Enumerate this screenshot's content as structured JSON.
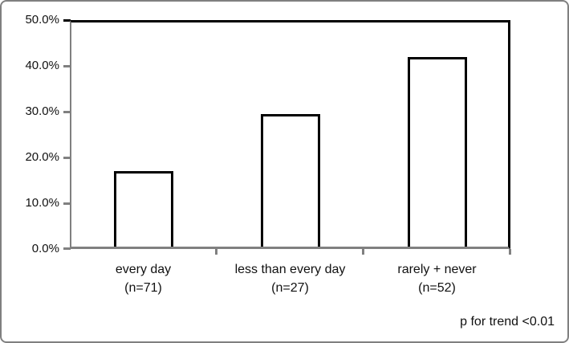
{
  "chart_data": {
    "type": "bar",
    "title": "",
    "xlabel": "",
    "ylabel": "",
    "categories": [
      {
        "label": "every day",
        "n": "(n=71)"
      },
      {
        "label": "less than every day",
        "n": "(n=27)"
      },
      {
        "label": "rarely + never",
        "n": "(n=52)"
      }
    ],
    "values": [
      16.9,
      29.6,
      42.3
    ],
    "ylim": [
      0,
      50
    ],
    "ytick_labels_top_to_bottom": [
      "50.0%",
      "40.0%",
      "30.0%",
      "20.0%",
      "10.0%",
      "0.0%"
    ],
    "ytick_step": 10,
    "grid": false,
    "legend": "none",
    "bar_fill": "#ffffff",
    "bar_border_color": "#000000",
    "axis_color": "#808080",
    "plot_border_color": "#000000",
    "annotations": [
      "p for trend <0.01"
    ]
  },
  "footnote": "p for trend <0.01"
}
